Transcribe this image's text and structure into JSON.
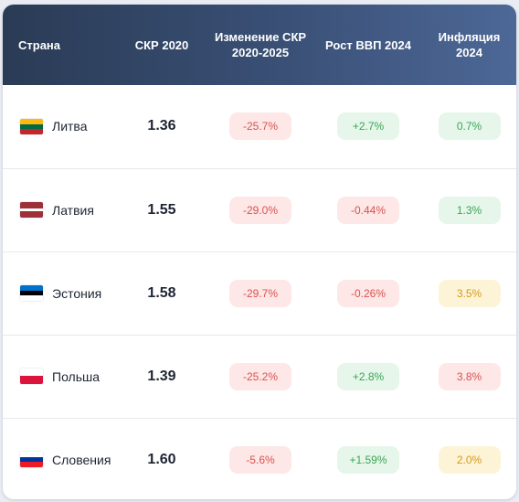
{
  "headers": {
    "country": "Страна",
    "skr": "СКР 2020",
    "change": "Изменение СКР 2020-2025",
    "gdp": "Рост ВВП 2024",
    "inflation": "Инфляция 2024"
  },
  "rows": [
    {
      "country": "Литва",
      "flag_icon": "lithuania-flag-icon",
      "flag_colors": [
        "#fdb913",
        "#006a44",
        "#c1272d"
      ],
      "skr": "1.36",
      "change": "-25.7%",
      "change_status": "red",
      "gdp": "+2.7%",
      "gdp_status": "green",
      "inflation": "0.7%",
      "inflation_status": "green"
    },
    {
      "country": "Латвия",
      "flag_icon": "latvia-flag-icon",
      "flag_colors": [
        "#9e3039",
        "#ffffff",
        "#9e3039"
      ],
      "skr": "1.55",
      "change": "-29.0%",
      "change_status": "red",
      "gdp": "-0.44%",
      "gdp_status": "red",
      "inflation": "1.3%",
      "inflation_status": "green"
    },
    {
      "country": "Эстония",
      "flag_icon": "estonia-flag-icon",
      "flag_colors": [
        "#0072ce",
        "#000000",
        "#ffffff"
      ],
      "skr": "1.58",
      "change": "-29.7%",
      "change_status": "red",
      "gdp": "-0.26%",
      "gdp_status": "red",
      "inflation": "3.5%",
      "inflation_status": "yellow"
    },
    {
      "country": "Польша",
      "flag_icon": "poland-flag-icon",
      "flag_colors": [
        "#ffffff",
        "#dc143c"
      ],
      "skr": "1.39",
      "change": "-25.2%",
      "change_status": "red",
      "gdp": "+2.8%",
      "gdp_status": "green",
      "inflation": "3.8%",
      "inflation_status": "red"
    },
    {
      "country": "Словения",
      "flag_icon": "slovenia-flag-icon",
      "flag_colors": [
        "#ffffff",
        "#0033a0",
        "#ed1c24"
      ],
      "skr": "1.60",
      "change": "-5.6%",
      "change_status": "red",
      "gdp": "+1.59%",
      "gdp_status": "green",
      "inflation": "2.0%",
      "inflation_status": "yellow"
    }
  ]
}
